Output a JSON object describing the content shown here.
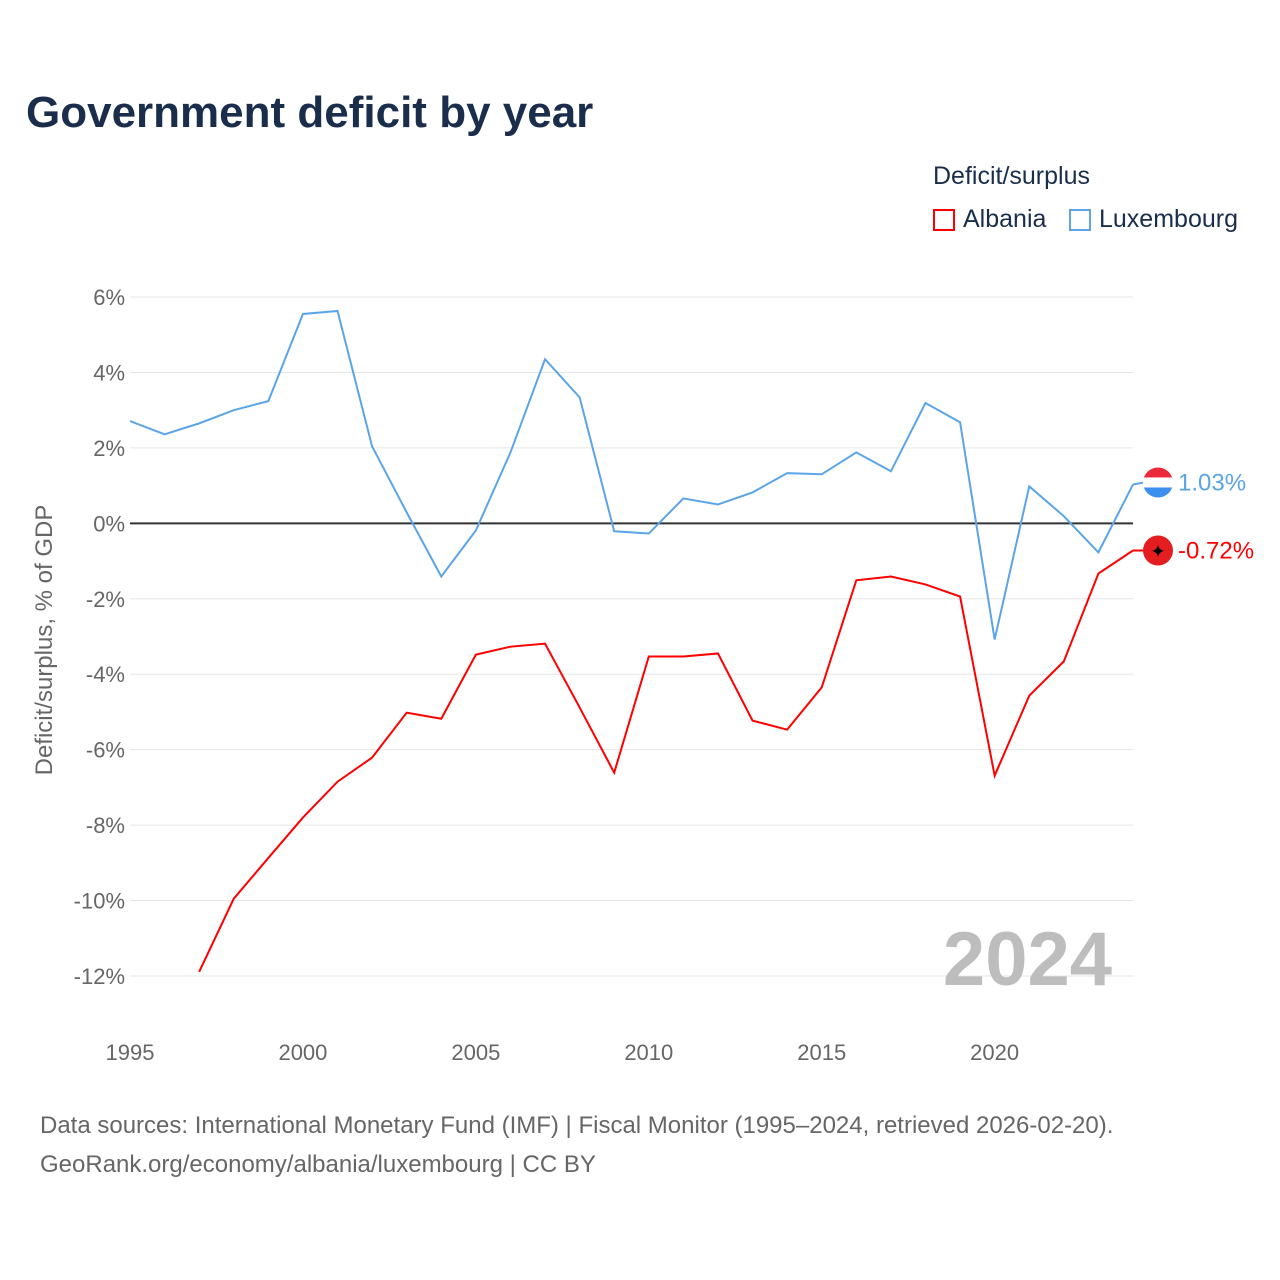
{
  "chart_data": {
    "type": "line",
    "title": "Government deficit by year",
    "ylabel": "Deficit/surplus, % of GDP",
    "xlabel": "",
    "ylim": [
      -12,
      6
    ],
    "xlim": [
      1995,
      2024
    ],
    "yticks": [
      6,
      4,
      2,
      0,
      -2,
      -4,
      -6,
      -8,
      -10,
      -12
    ],
    "ytick_labels": [
      "6%",
      "4%",
      "2%",
      "0%",
      "-2%",
      "-4%",
      "-6%",
      "-8%",
      "-10%",
      "-12%"
    ],
    "xticks": [
      1995,
      2000,
      2005,
      2010,
      2015,
      2020
    ],
    "xtick_labels": [
      "1995",
      "2000",
      "2005",
      "2010",
      "2015",
      "2020"
    ],
    "grid": true,
    "legend_title": "Deficit/surplus",
    "legend_placement": "top-right",
    "year_watermark": "2024",
    "series": [
      {
        "name": "Albania",
        "color": "#ff0000",
        "end_label": "-0.72%",
        "x": [
          1997,
          1998,
          1999,
          2000,
          2001,
          2002,
          2003,
          2004,
          2005,
          2006,
          2007,
          2008,
          2009,
          2010,
          2011,
          2012,
          2013,
          2014,
          2015,
          2016,
          2017,
          2018,
          2019,
          2020,
          2021,
          2022,
          2023,
          2024
        ],
        "values": [
          -11.89,
          -9.95,
          -8.87,
          -7.8,
          -6.85,
          -6.21,
          -5.02,
          -5.18,
          -3.48,
          -3.27,
          -3.19,
          -4.88,
          -6.61,
          -3.53,
          -3.53,
          -3.45,
          -5.23,
          -5.47,
          -4.35,
          -1.51,
          -1.41,
          -1.62,
          -1.94,
          -6.69,
          -4.57,
          -3.66,
          -1.33,
          -0.72
        ]
      },
      {
        "name": "Luxembourg",
        "color": "#5ba4e8",
        "end_label": "1.03%",
        "x": [
          1995,
          1996,
          1997,
          1998,
          1999,
          2000,
          2001,
          2002,
          2003,
          2004,
          2005,
          2006,
          2007,
          2008,
          2009,
          2010,
          2011,
          2012,
          2013,
          2014,
          2015,
          2016,
          2017,
          2018,
          2019,
          2020,
          2021,
          2022,
          2023,
          2024
        ],
        "values": [
          2.71,
          2.36,
          2.65,
          3.0,
          3.24,
          5.55,
          5.63,
          2.04,
          0.29,
          -1.41,
          -0.19,
          1.88,
          4.35,
          3.34,
          -0.21,
          -0.27,
          0.66,
          0.5,
          0.82,
          1.33,
          1.3,
          1.88,
          1.38,
          3.19,
          2.68,
          -3.08,
          0.98,
          0.19,
          -0.77,
          1.03
        ]
      }
    ]
  },
  "footer": {
    "line1": "Data sources: International Monetary Fund (IMF) | Fiscal Monitor (1995–2024, retrieved 2026-02-20).",
    "line2": "GeoRank.org/economy/albania/luxembourg | CC BY"
  }
}
